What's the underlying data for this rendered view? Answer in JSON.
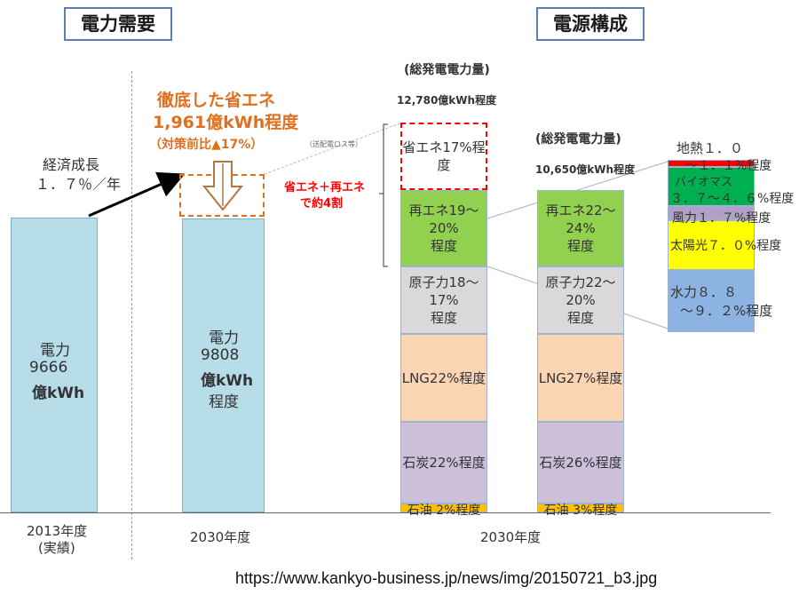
{
  "headers": {
    "left": "電力需要",
    "right": "電源構成"
  },
  "growth_label_1": "経済成長",
  "growth_label_2": "１．７％／年",
  "saving": {
    "title_1": "徹底した省エネ",
    "title_2": "1,961億kWh程度",
    "title_3": "（対策前比▲17%）",
    "note": "（送配電ロス等）"
  },
  "combined_label_1": "省エネ＋再エネ",
  "combined_label_2": "で約4割",
  "total_1": {
    "label": "(総発電電力量)",
    "value": "12,780億kWh程度"
  },
  "total_2": {
    "label": "(総発電電力量)",
    "value": "10,650億kWh程度"
  },
  "bar_2013": {
    "line1": "電力",
    "line2": "9666",
    "line3": "億kWh"
  },
  "bar_2030": {
    "line1": "電力",
    "line2": "9808",
    "line3": "億kWh",
    "line4": "程度"
  },
  "x_labels": {
    "y2013_1": "2013年度",
    "y2013_2": "(実績)",
    "y2030": "2030年度",
    "y2030_mix": "2030年度"
  },
  "mix1": {
    "shoene": "省エネ17%程度",
    "renew_1": "再エネ19～20%",
    "renew_2": "程度",
    "nuclear_1": "原子力18～17%",
    "nuclear_2": "程度",
    "lng": "LNG22%程度",
    "coal": "石炭22%程度",
    "oil": "石油 2%程度"
  },
  "mix2": {
    "renew_1": "再エネ22～24%",
    "renew_2": "程度",
    "nuclear_1": "原子力22～20%",
    "nuclear_2": "程度",
    "lng": "LNG27%程度",
    "coal": "石炭26%程度",
    "oil": "石油 3%程度"
  },
  "renew_breakdown": {
    "geo_1": "地熱１．０",
    "geo_2": "～１．１%程度",
    "bio_1": "バイオマス",
    "bio_2": "３．７～４．６%程度",
    "wind": "風力１．７%程度",
    "solar": "太陽光７．０%程度",
    "hydro_1": "水力８．８",
    "hydro_2": "～９．２%程度"
  },
  "source_url": "https://www.kankyo-business.jp/news/img/20150721_b3.jpg",
  "colors": {
    "demand": "#b7dde8",
    "shoene": "#ff0000",
    "renew": "#92d050",
    "nuclear": "#d9d9d9",
    "lng": "#fbd4b4",
    "coal": "#ccc0da",
    "oil": "#ffc000",
    "geo": "#ff0000",
    "bio": "#00b050",
    "wind": "#b1a0c7",
    "solar": "#ffff00",
    "hydro": "#8db3e2",
    "accent": "#e07020"
  },
  "chart_data": {
    "type": "bar",
    "title": "",
    "categories": [
      "2013年度 (実績)",
      "2030年度",
      "2030年度 総発電電力量 12,780億kWh程度",
      "2030年度 総発電電力量 10,650億kWh程度"
    ],
    "demand_values_100m_kwh": {
      "2013年度": 9666,
      "2030年度": 9808
    },
    "saving_value_100m_kwh": 1961,
    "saving_percent_vs_pre_measure": 17,
    "mix_12780": [
      {
        "name": "省エネ",
        "percent": 17
      },
      {
        "name": "再エネ",
        "percent_range": [
          19,
          20
        ]
      },
      {
        "name": "原子力",
        "percent_range": [
          18,
          17
        ]
      },
      {
        "name": "LNG",
        "percent": 22
      },
      {
        "name": "石炭",
        "percent": 22
      },
      {
        "name": "石油",
        "percent": 2
      }
    ],
    "mix_10650": [
      {
        "name": "再エネ",
        "percent_range": [
          22,
          24
        ]
      },
      {
        "name": "原子力",
        "percent_range": [
          22,
          20
        ]
      },
      {
        "name": "LNG",
        "percent": 27
      },
      {
        "name": "石炭",
        "percent": 26
      },
      {
        "name": "石油",
        "percent": 3
      }
    ],
    "renewable_breakdown": [
      {
        "name": "地熱",
        "percent_range": [
          1.0,
          1.1
        ]
      },
      {
        "name": "バイオマス",
        "percent_range": [
          3.7,
          4.6
        ]
      },
      {
        "name": "風力",
        "percent": 1.7
      },
      {
        "name": "太陽光",
        "percent": 7.0
      },
      {
        "name": "水力",
        "percent_range": [
          8.8,
          9.2
        ]
      }
    ]
  }
}
